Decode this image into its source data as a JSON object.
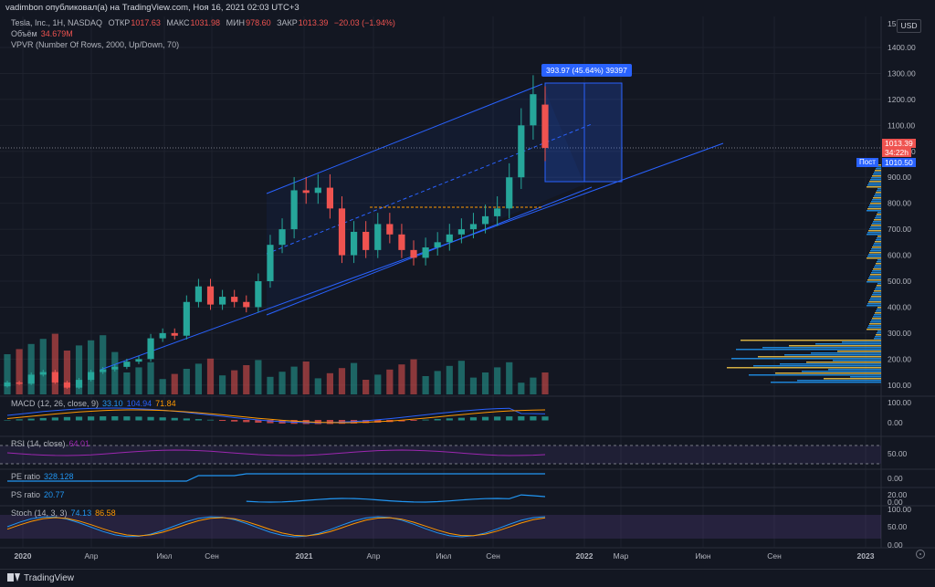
{
  "header": {
    "published": "vadimbon опубликовал(а) на TradingView.com, Ноя 16, 2021 02:03 UTC+3",
    "symbol_line": "Tesla, Inc., 1H, NASDAQ",
    "open_label": "ОТКР",
    "open": "1017.63",
    "high_label": "МАКС",
    "high": "1031.98",
    "low_label": "МИН",
    "low": "978.60",
    "close_label": "ЗАКР",
    "close": "1013.39",
    "change": "−20.03 (−1.94%)"
  },
  "legend": {
    "volume_label": "Объём",
    "volume_value": "34.679M",
    "vpvr": "VPVR (Number Of Rows, 2000, Up/Down, 70)"
  },
  "currency": "USD",
  "price_axis": {
    "ticks": [
      "1400.00",
      "1300.00",
      "1200.00",
      "1100.00",
      "1000.00",
      "900.00",
      "800.00",
      "700.00",
      "600.00",
      "500.00",
      "400.00",
      "300.00",
      "200.00",
      "100.00"
    ],
    "top_tick": "15",
    "last_price": "1013.39",
    "countdown": "34:22h",
    "post_label": "Пост",
    "post_price": "1010.50"
  },
  "measure": {
    "text": "393.97 (45.64%) 39397"
  },
  "panes": {
    "macd": {
      "label": "MACD (12, 26, close, 9)",
      "v1": "33.10",
      "v2": "104.94",
      "v3": "71.84",
      "ticks": [
        "100.00",
        "0.00"
      ]
    },
    "rsi": {
      "label": "RSI (14, close)",
      "v1": "64.01",
      "ticks": [
        "50.00"
      ]
    },
    "pe": {
      "label": "PE ratio",
      "v1": "328.128",
      "ticks": [
        "0.00"
      ]
    },
    "ps": {
      "label": "PS ratio",
      "v1": "20.77",
      "ticks": [
        "20.00",
        "0.00"
      ]
    },
    "stoch": {
      "label": "Stoch (14, 3, 3)",
      "v1": "74.13",
      "v2": "86.58",
      "ticks": [
        "100.00",
        "50.00",
        "0.00"
      ]
    }
  },
  "time_axis": [
    "2020",
    "Апр",
    "Июл",
    "Сен",
    "2021",
    "Апр",
    "Июл",
    "Сен",
    "2022",
    "Мар",
    "Июн",
    "Сен",
    "2023"
  ],
  "footer": {
    "brand": "TradingView"
  },
  "colors": {
    "up": "#26a69a",
    "down": "#ef5350",
    "accent": "#2962ff",
    "bg": "#131722"
  },
  "chart_data": {
    "type": "candlestick",
    "title": "",
    "y_scale": "linear",
    "ylim": [
      50,
      1420
    ],
    "candles": [
      {
        "t": "2020-01",
        "o": 95,
        "c": 110
      },
      {
        "t": "2020-01b",
        "o": 110,
        "c": 105
      },
      {
        "t": "2020-02",
        "o": 105,
        "c": 140
      },
      {
        "t": "2020-02b",
        "o": 140,
        "c": 150
      },
      {
        "t": "2020-03",
        "o": 150,
        "c": 110
      },
      {
        "t": "2020-03b",
        "o": 110,
        "c": 90
      },
      {
        "t": "2020-04",
        "o": 90,
        "c": 120
      },
      {
        "t": "2020-04b",
        "o": 120,
        "c": 150
      },
      {
        "t": "2020-05",
        "o": 150,
        "c": 160
      },
      {
        "t": "2020-05b",
        "o": 160,
        "c": 170
      },
      {
        "t": "2020-06",
        "o": 170,
        "c": 190
      },
      {
        "t": "2020-06b",
        "o": 190,
        "c": 200
      },
      {
        "t": "2020-07",
        "o": 200,
        "c": 280
      },
      {
        "t": "2020-07b",
        "o": 280,
        "c": 300
      },
      {
        "t": "2020-08",
        "o": 300,
        "c": 290
      },
      {
        "t": "2020-08b",
        "o": 290,
        "c": 420
      },
      {
        "t": "2020-09",
        "o": 420,
        "c": 480
      },
      {
        "t": "2020-09b",
        "o": 480,
        "c": 410
      },
      {
        "t": "2020-10",
        "o": 410,
        "c": 440
      },
      {
        "t": "2020-10b",
        "o": 440,
        "c": 420
      },
      {
        "t": "2020-11",
        "o": 420,
        "c": 400
      },
      {
        "t": "2020-11b",
        "o": 400,
        "c": 500
      },
      {
        "t": "2020-12",
        "o": 500,
        "c": 640
      },
      {
        "t": "2020-12b",
        "o": 640,
        "c": 700
      },
      {
        "t": "2021-01",
        "o": 700,
        "c": 850
      },
      {
        "t": "2021-01b",
        "o": 850,
        "c": 840
      },
      {
        "t": "2021-02",
        "o": 840,
        "c": 860
      },
      {
        "t": "2021-02b",
        "o": 860,
        "c": 780
      },
      {
        "t": "2021-03",
        "o": 780,
        "c": 600
      },
      {
        "t": "2021-03b",
        "o": 600,
        "c": 690
      },
      {
        "t": "2021-04",
        "o": 690,
        "c": 620
      },
      {
        "t": "2021-04b",
        "o": 620,
        "c": 720
      },
      {
        "t": "2021-05",
        "o": 720,
        "c": 680
      },
      {
        "t": "2021-05b",
        "o": 680,
        "c": 620
      },
      {
        "t": "2021-06",
        "o": 620,
        "c": 590
      },
      {
        "t": "2021-06b",
        "o": 590,
        "c": 630
      },
      {
        "t": "2021-07",
        "o": 630,
        "c": 650
      },
      {
        "t": "2021-07b",
        "o": 650,
        "c": 680
      },
      {
        "t": "2021-08",
        "o": 680,
        "c": 700
      },
      {
        "t": "2021-08b",
        "o": 700,
        "c": 720
      },
      {
        "t": "2021-09",
        "o": 720,
        "c": 750
      },
      {
        "t": "2021-09b",
        "o": 750,
        "c": 780
      },
      {
        "t": "2021-10",
        "o": 780,
        "c": 900
      },
      {
        "t": "2021-10b",
        "o": 900,
        "c": 1100
      },
      {
        "t": "2021-11",
        "o": 1100,
        "c": 1220
      },
      {
        "t": "2021-11b",
        "o": 1180,
        "c": 1013
      }
    ]
  }
}
